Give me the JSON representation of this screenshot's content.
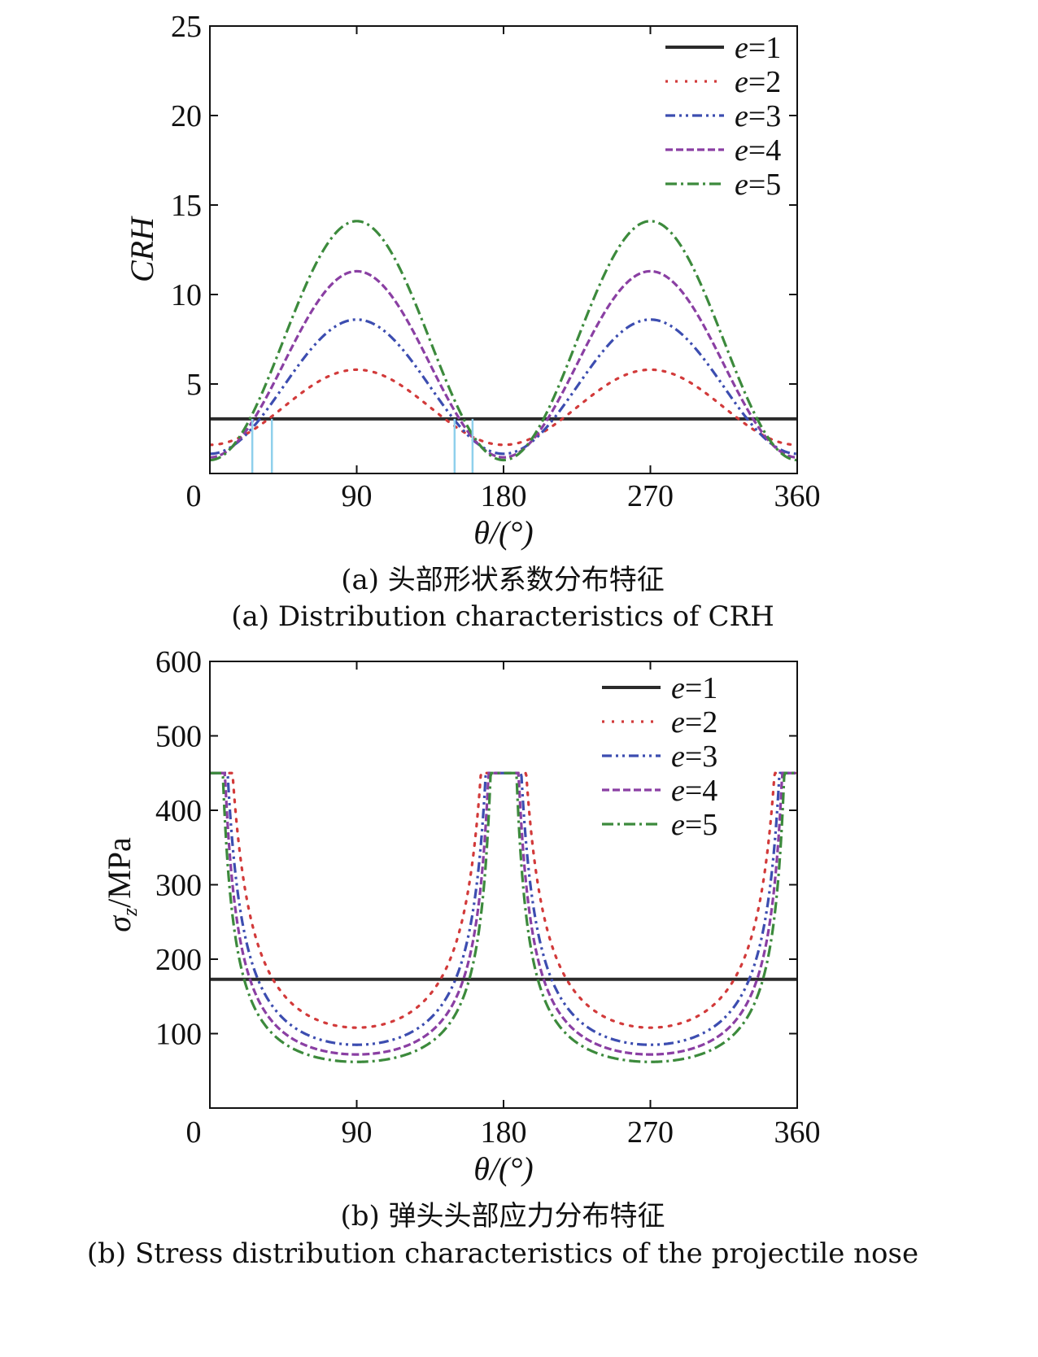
{
  "chart_data": [
    {
      "type": "line",
      "panel": "a",
      "ylabel": "CRH",
      "xlabel": "θ/(°)",
      "xlim": [
        0,
        360
      ],
      "ylim": [
        0,
        25
      ],
      "x_ticks": [
        0,
        90,
        180,
        270,
        360
      ],
      "y_ticks": [
        5,
        10,
        15,
        20,
        25
      ],
      "y_zero_label": "0",
      "caption_cn": "(a) 头部形状系数分布特征",
      "caption_en": "(a) Distribution characteristics of CRH",
      "legend_position": "top-right",
      "series": [
        {
          "name": "e=1",
          "color": "#2b2b2b",
          "style": "solid",
          "values": {
            "mode": "const",
            "value": 3.05
          }
        },
        {
          "name": "e=2",
          "color": "#d23a3a",
          "style": "dotted",
          "values": {
            "mode": "peak",
            "max": 5.8,
            "min": 1.6
          }
        },
        {
          "name": "e=3",
          "color": "#3c4db0",
          "style": "dashdotdot",
          "values": {
            "mode": "peak",
            "max": 8.6,
            "min": 1.1
          }
        },
        {
          "name": "e=4",
          "color": "#8a3fa3",
          "style": "dashed",
          "values": {
            "mode": "peak",
            "max": 11.3,
            "min": 0.9
          }
        },
        {
          "name": "e=5",
          "color": "#3c8a3c",
          "style": "dashdot",
          "values": {
            "mode": "peak",
            "max": 14.1,
            "min": 0.75
          }
        }
      ],
      "markers": [
        {
          "x": 26,
          "y": 3.05
        },
        {
          "x": 38,
          "y": 3.05
        },
        {
          "x": 150,
          "y": 3.05
        },
        {
          "x": 161,
          "y": 3.05
        }
      ],
      "marker_color": "#8fd0ec"
    },
    {
      "type": "line",
      "panel": "b",
      "ylabel_symbol": "σ",
      "ylabel_sub": "z",
      "ylabel_unit": "/MPa",
      "xlabel": "θ/(°)",
      "xlim": [
        0,
        360
      ],
      "ylim": [
        0,
        600
      ],
      "x_ticks": [
        0,
        90,
        180,
        270,
        360
      ],
      "y_ticks": [
        100,
        200,
        300,
        400,
        500,
        600
      ],
      "y_zero_label": "0",
      "caption_cn": "(b) 弹头头部应力分布特征",
      "caption_en": "(b) Stress distribution characteristics of the projectile nose",
      "legend_position": "top-right",
      "series": [
        {
          "name": "e=1",
          "color": "#2b2b2b",
          "style": "solid",
          "values": {
            "mode": "const",
            "value": 173
          }
        },
        {
          "name": "e=2",
          "color": "#d23a3a",
          "style": "dotted",
          "values": {
            "mode": "stress",
            "min": 108,
            "max": 450
          }
        },
        {
          "name": "e=3",
          "color": "#3c4db0",
          "style": "dashdotdot",
          "values": {
            "mode": "stress",
            "min": 85,
            "max": 450
          }
        },
        {
          "name": "e=4",
          "color": "#8a3fa3",
          "style": "dashed",
          "values": {
            "mode": "stress",
            "min": 72,
            "max": 450
          }
        },
        {
          "name": "e=5",
          "color": "#3c8a3c",
          "style": "dashdot",
          "values": {
            "mode": "stress",
            "min": 62,
            "max": 450
          }
        }
      ]
    }
  ]
}
